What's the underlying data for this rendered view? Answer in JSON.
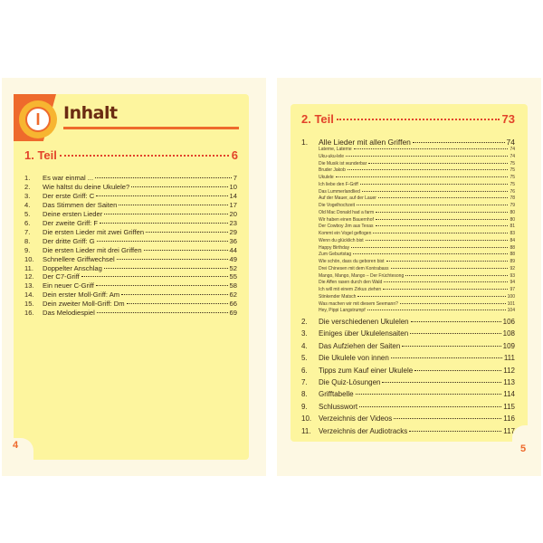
{
  "left": {
    "title": "Inhalt",
    "badge": "I",
    "part": {
      "label": "1. Teil",
      "page": "6"
    },
    "items": [
      {
        "n": "1.",
        "t": "Es war einmal ...",
        "p": "7"
      },
      {
        "n": "2.",
        "t": "Wie hältst du deine Ukulele?",
        "p": "10"
      },
      {
        "n": "3.",
        "t": "Der erste Griff: C",
        "p": "14"
      },
      {
        "n": "4.",
        "t": "Das Stimmen der Saiten",
        "p": "17"
      },
      {
        "n": "5.",
        "t": "Deine ersten Lieder",
        "p": "20"
      },
      {
        "n": "6.",
        "t": "Der zweite Griff: F",
        "p": "23"
      },
      {
        "n": "7.",
        "t": "Die ersten Lieder mit zwei Griffen",
        "p": "29"
      },
      {
        "n": "8.",
        "t": "Der dritte Griff: G",
        "p": "36"
      },
      {
        "n": "9.",
        "t": "Die ersten Lieder mit drei Griffen",
        "p": "44"
      },
      {
        "n": "10.",
        "t": "Schnellere Griffwechsel",
        "p": "49"
      },
      {
        "n": "11.",
        "t": "Doppelter Anschlag",
        "p": "52"
      },
      {
        "n": "12.",
        "t": "Der C7-Griff",
        "p": "55"
      },
      {
        "n": "13.",
        "t": "Ein neuer C-Griff",
        "p": "58"
      },
      {
        "n": "14.",
        "t": "Dein erster Moll-Griff: Am",
        "p": "62"
      },
      {
        "n": "15.",
        "t": "Dein zweiter Moll-Griff: Dm",
        "p": "66"
      },
      {
        "n": "16.",
        "t": "Das Melodiespiel",
        "p": "69"
      }
    ],
    "page_number": "4"
  },
  "right": {
    "part": {
      "label": "2. Teil",
      "page": "73"
    },
    "first": {
      "n": "1.",
      "t": "Alle Lieder mit allen Griffen",
      "p": "74"
    },
    "songs": [
      {
        "t": "Laterne, Laterne",
        "p": "74"
      },
      {
        "t": "Uku-uku-lele",
        "p": "74"
      },
      {
        "t": "Die Musik ist wunderbar",
        "p": "75"
      },
      {
        "t": "Bruder Jakob",
        "p": "75"
      },
      {
        "t": "Ukulele",
        "p": "75"
      },
      {
        "t": "Ich liebe den F-Griff",
        "p": "75"
      },
      {
        "t": "Das Lummerlandlied",
        "p": "76"
      },
      {
        "t": "Auf der Mauer, auf der Lauer",
        "p": "78"
      },
      {
        "t": "Die Vogelhochzeit",
        "p": "79"
      },
      {
        "t": "Old Mac Donald had a farm",
        "p": "80"
      },
      {
        "t": "Wir haben einen Bauernhof",
        "p": "80"
      },
      {
        "t": "Der Cowboy Jim aus Texas",
        "p": "81"
      },
      {
        "t": "Kommt ein Vogel geflogen",
        "p": "83"
      },
      {
        "t": "Wenn du glücklich bist",
        "p": "84"
      },
      {
        "t": "Happy Birthday",
        "p": "88"
      },
      {
        "t": "Zum Geburtstag",
        "p": "88"
      },
      {
        "t": "Wie schön, dass du geboren bist",
        "p": "89"
      },
      {
        "t": "Drei Chinesen mit dem Kontrabass",
        "p": "92"
      },
      {
        "t": "Mango, Mango, Mango – Der Früchtesong",
        "p": "93"
      },
      {
        "t": "Die Affen rasen durch den Wald",
        "p": "94"
      },
      {
        "t": "Ich will mit einem Zirkus ziehen",
        "p": "97"
      },
      {
        "t": "Stinkender Matsch",
        "p": "100"
      },
      {
        "t": "Was machen wir mit diesem Seemann?",
        "p": "101"
      },
      {
        "t": "Hey, Pippi Langstrumpf",
        "p": "104"
      }
    ],
    "items": [
      {
        "n": "2.",
        "t": "Die verschiedenen Ukulelen",
        "p": "106"
      },
      {
        "n": "3.",
        "t": "Einiges über Ukulelensaiten",
        "p": "108"
      },
      {
        "n": "4.",
        "t": "Das Aufziehen der Saiten",
        "p": "109"
      },
      {
        "n": "5.",
        "t": "Die Ukulele von innen",
        "p": "111"
      },
      {
        "n": "6.",
        "t": "Tipps zum Kauf einer Ukulele",
        "p": "112"
      },
      {
        "n": "7.",
        "t": "Die Quiz-Lösungen",
        "p": "113"
      },
      {
        "n": "8.",
        "t": "Grifftabelle",
        "p": "114"
      },
      {
        "n": "9.",
        "t": "Schlusswort",
        "p": "115"
      },
      {
        "n": "10.",
        "t": "Verzeichnis der Videos",
        "p": "116"
      },
      {
        "n": "11.",
        "t": "Verzeichnis der Audiotracks",
        "p": "117"
      }
    ],
    "page_number": "5"
  },
  "colors": {
    "accent": "#ee6a2c",
    "panel": "#fdf59e",
    "page": "#fdf8e3",
    "heading": "#e2432a"
  }
}
